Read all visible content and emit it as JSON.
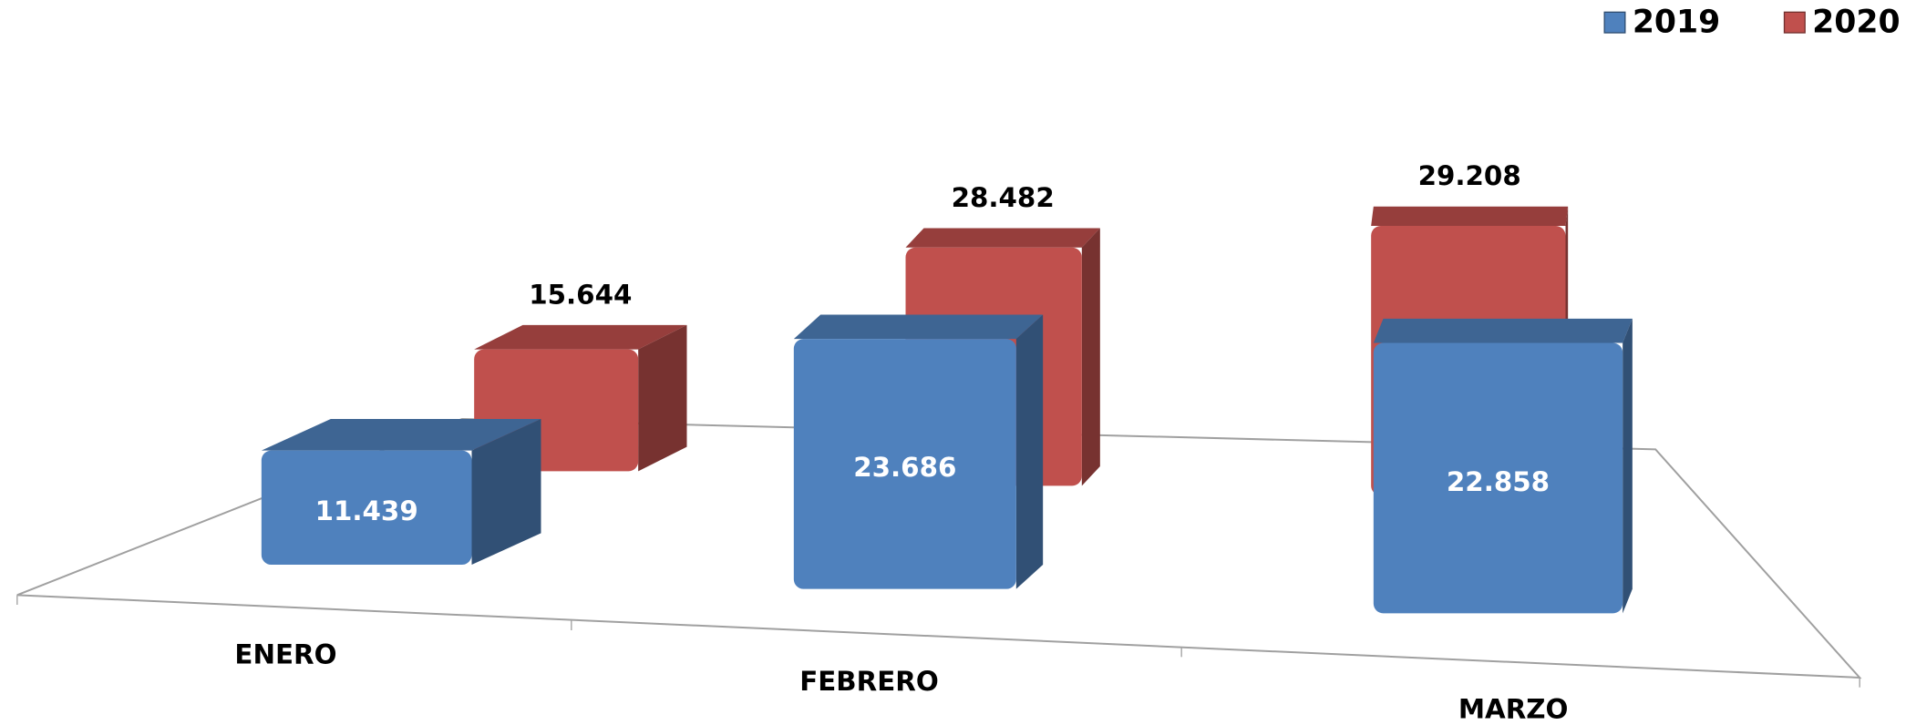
{
  "chart_data": {
    "type": "bar3d",
    "categories": [
      "ENERO",
      "FEBRERO",
      "MARZO"
    ],
    "series": [
      {
        "name": "2019",
        "color": "#4f81bd",
        "values": [
          11439,
          23686,
          22858
        ],
        "value_labels": [
          "11.439",
          "23.686",
          "22.858"
        ]
      },
      {
        "name": "2020",
        "color": "#c0504d",
        "values": [
          15644,
          28482,
          29208
        ],
        "value_labels": [
          "15.644",
          "28.482",
          "29.208"
        ]
      }
    ],
    "legend": "top-right"
  }
}
